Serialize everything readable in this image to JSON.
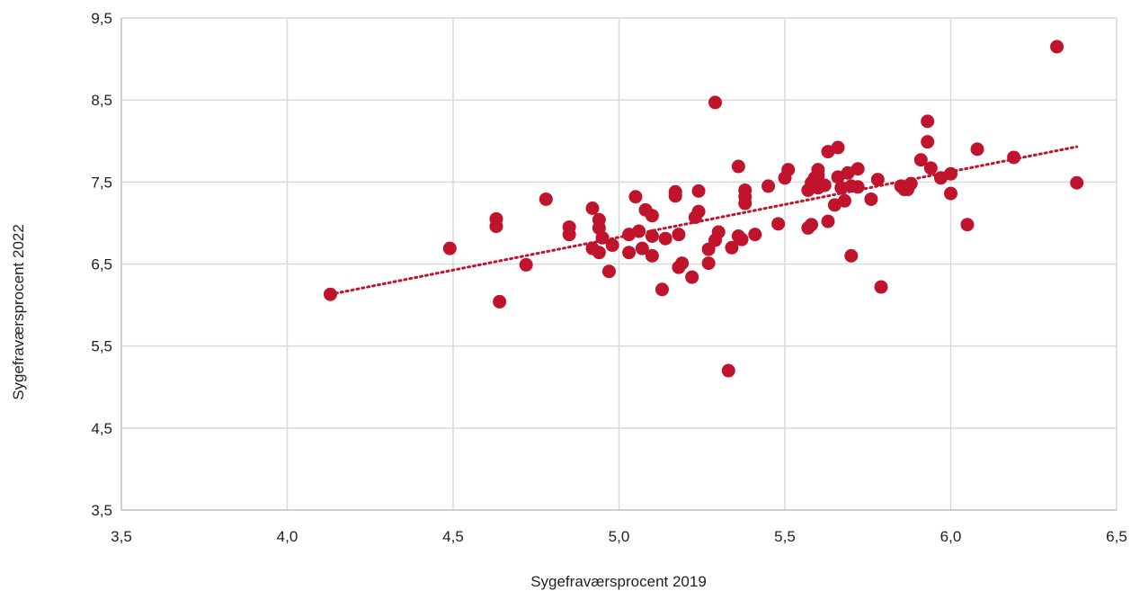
{
  "chart_data": {
    "type": "scatter",
    "title": "",
    "xlabel": "Sygefraværsprocent 2019",
    "ylabel": "Sygefraværsprocent 2022",
    "xlim": [
      3.5,
      6.5
    ],
    "ylim": [
      3.5,
      9.5
    ],
    "x_ticks": [
      "3,5",
      "4,0",
      "4,5",
      "5,0",
      "5,5",
      "6,0",
      "6,5"
    ],
    "y_ticks": [
      "3,5",
      "4,5",
      "5,5",
      "6,5",
      "7,5",
      "8,5",
      "9,5"
    ],
    "grid": true,
    "legend": "none",
    "point_color": "#C0142D",
    "trendline": {
      "style": "dotted",
      "type": "linear",
      "color": "#C0142D",
      "from": [
        4.13,
        6.13
      ],
      "to": [
        6.38,
        7.93
      ]
    },
    "points": [
      [
        4.13,
        6.13
      ],
      [
        4.49,
        6.69
      ],
      [
        4.63,
        7.05
      ],
      [
        4.63,
        6.96
      ],
      [
        4.64,
        6.04
      ],
      [
        4.72,
        6.49
      ],
      [
        4.78,
        7.29
      ],
      [
        4.85,
        6.95
      ],
      [
        4.85,
        6.86
      ],
      [
        4.92,
        7.18
      ],
      [
        4.92,
        6.69
      ],
      [
        4.94,
        7.04
      ],
      [
        4.94,
        6.94
      ],
      [
        4.94,
        6.64
      ],
      [
        4.95,
        6.82
      ],
      [
        4.97,
        6.41
      ],
      [
        4.98,
        6.73
      ],
      [
        5.03,
        6.86
      ],
      [
        5.03,
        6.64
      ],
      [
        5.05,
        7.32
      ],
      [
        5.06,
        6.9
      ],
      [
        5.07,
        6.69
      ],
      [
        5.08,
        7.16
      ],
      [
        5.1,
        7.09
      ],
      [
        5.1,
        6.84
      ],
      [
        5.1,
        6.6
      ],
      [
        5.13,
        6.19
      ],
      [
        5.14,
        6.81
      ],
      [
        5.17,
        7.38
      ],
      [
        5.17,
        7.33
      ],
      [
        5.18,
        6.86
      ],
      [
        5.18,
        6.46
      ],
      [
        5.19,
        6.51
      ],
      [
        5.22,
        6.34
      ],
      [
        5.23,
        7.07
      ],
      [
        5.24,
        7.39
      ],
      [
        5.24,
        7.14
      ],
      [
        5.27,
        6.68
      ],
      [
        5.27,
        6.51
      ],
      [
        5.29,
        8.47
      ],
      [
        5.29,
        6.79
      ],
      [
        5.3,
        6.89
      ],
      [
        5.33,
        5.2
      ],
      [
        5.34,
        6.7
      ],
      [
        5.36,
        7.69
      ],
      [
        5.36,
        6.84
      ],
      [
        5.37,
        6.8
      ],
      [
        5.38,
        7.4
      ],
      [
        5.38,
        7.32
      ],
      [
        5.38,
        7.24
      ],
      [
        5.41,
        6.86
      ],
      [
        5.45,
        7.45
      ],
      [
        5.48,
        6.99
      ],
      [
        5.5,
        7.55
      ],
      [
        5.51,
        7.65
      ],
      [
        5.57,
        7.4
      ],
      [
        5.58,
        7.49
      ],
      [
        5.58,
        6.98
      ],
      [
        5.57,
        6.94
      ],
      [
        5.59,
        7.55
      ],
      [
        5.6,
        7.65
      ],
      [
        5.6,
        7.58
      ],
      [
        5.6,
        7.43
      ],
      [
        5.62,
        7.46
      ],
      [
        5.63,
        7.87
      ],
      [
        5.63,
        7.02
      ],
      [
        5.65,
        7.22
      ],
      [
        5.66,
        7.92
      ],
      [
        5.66,
        7.56
      ],
      [
        5.67,
        7.43
      ],
      [
        5.68,
        7.27
      ],
      [
        5.69,
        7.61
      ],
      [
        5.7,
        7.45
      ],
      [
        5.7,
        6.6
      ],
      [
        5.72,
        7.66
      ],
      [
        5.72,
        7.44
      ],
      [
        5.76,
        7.29
      ],
      [
        5.78,
        7.53
      ],
      [
        5.79,
        6.22
      ],
      [
        5.85,
        7.45
      ],
      [
        5.86,
        7.41
      ],
      [
        5.87,
        7.41
      ],
      [
        5.88,
        7.48
      ],
      [
        5.91,
        7.77
      ],
      [
        5.93,
        8.24
      ],
      [
        5.93,
        7.99
      ],
      [
        5.94,
        7.67
      ],
      [
        5.97,
        7.55
      ],
      [
        6.0,
        7.6
      ],
      [
        6.0,
        7.36
      ],
      [
        6.05,
        6.98
      ],
      [
        6.08,
        7.9
      ],
      [
        6.19,
        7.8
      ],
      [
        6.32,
        9.15
      ],
      [
        6.38,
        7.49
      ]
    ]
  }
}
